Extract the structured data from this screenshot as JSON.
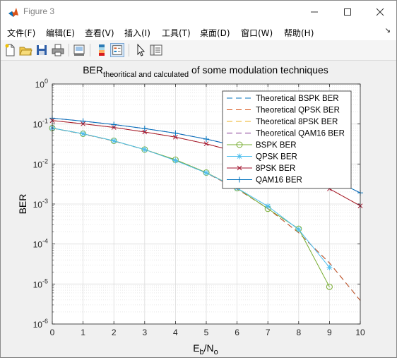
{
  "window": {
    "title": "Figure 3"
  },
  "menu": [
    "文件(F)",
    "编辑(E)",
    "查看(V)",
    "插入(I)",
    "工具(T)",
    "桌面(D)",
    "窗口(W)",
    "帮助(H)"
  ],
  "menu_overflow": "↘",
  "toolbar": [
    "new-figure",
    "open-file",
    "save",
    "print",
    "link-plot",
    "insert-colorbar",
    "insert-legend",
    "edit-plot",
    "property-inspector"
  ],
  "chart_data": {
    "type": "line",
    "title_main": "BER",
    "title_sub": "theoritical and calculated",
    "title_rest": " of some modulation techniques",
    "ylabel": "BER",
    "xlabel_main": "E",
    "xlabel_sub1": "b",
    "xlabel_mid": "/N",
    "xlabel_sub2": "o",
    "xlim": [
      0,
      10
    ],
    "ylim_log10": [
      -6,
      0
    ],
    "yscale": "log",
    "grid": true,
    "minor_grid": true,
    "legend_position": "top-right",
    "x_ticks": [
      "0",
      "1",
      "2",
      "3",
      "4",
      "5",
      "6",
      "7",
      "8",
      "9",
      "10"
    ],
    "y_ticks": [
      {
        "exp": -6,
        "label": "10",
        "sup": "-6"
      },
      {
        "exp": -5,
        "label": "10",
        "sup": "-5"
      },
      {
        "exp": -4,
        "label": "10",
        "sup": "-4"
      },
      {
        "exp": -3,
        "label": "10",
        "sup": "-3"
      },
      {
        "exp": -2,
        "label": "10",
        "sup": "-2"
      },
      {
        "exp": -1,
        "label": "10",
        "sup": "-1"
      },
      {
        "exp": 0,
        "label": "10",
        "sup": "0"
      }
    ],
    "series": [
      {
        "name": "Theoretical BSPK BER",
        "color": "#0072bd",
        "dash": "dashed",
        "marker": "none",
        "x": [
          0,
          1,
          2,
          3,
          4,
          5,
          6,
          7,
          8,
          9,
          10
        ],
        "y": [
          0.0786,
          0.0563,
          0.0375,
          0.0229,
          0.0125,
          0.00595,
          0.00239,
          0.000773,
          0.000191,
          3.36e-05,
          3.87e-06
        ]
      },
      {
        "name": "Theoretical QPSK BER",
        "color": "#d95319",
        "dash": "dashed",
        "marker": "none",
        "x": [
          0,
          1,
          2,
          3,
          4,
          5,
          6,
          7,
          8,
          9,
          10
        ],
        "y": [
          0.0786,
          0.0563,
          0.0375,
          0.0229,
          0.0125,
          0.00595,
          0.00239,
          0.000773,
          0.000191,
          3.36e-05,
          3.87e-06
        ]
      },
      {
        "name": "Theoretical 8PSK BER",
        "color": "#edb120",
        "dash": "dashed",
        "marker": "none",
        "x": [
          0,
          1,
          2,
          3,
          4,
          5,
          6,
          7,
          8,
          9,
          10
        ],
        "y": [
          0.122,
          0.101,
          0.082,
          0.063,
          0.047,
          0.032,
          0.02,
          0.0115,
          0.0057,
          0.0024,
          0.0009
        ]
      },
      {
        "name": "Theoretical QAM16 BER",
        "color": "#7e2f8e",
        "dash": "dashed",
        "marker": "none",
        "x": [
          0,
          1,
          2,
          3,
          4,
          5,
          6,
          7,
          8,
          9,
          10
        ],
        "y": [
          0.14,
          0.118,
          0.097,
          0.077,
          0.059,
          0.042,
          0.028,
          0.017,
          0.0095,
          0.0045,
          0.0019
        ]
      },
      {
        "name": "BSPK BER",
        "color": "#77ac30",
        "dash": "solid",
        "marker": "circle",
        "x": [
          0,
          1,
          2,
          3,
          4,
          5,
          6,
          7,
          8,
          9
        ],
        "y": [
          0.079,
          0.057,
          0.038,
          0.023,
          0.0128,
          0.0061,
          0.0025,
          0.00076,
          0.00024,
          8.5e-06
        ]
      },
      {
        "name": "QPSK BER",
        "color": "#4dbeee",
        "dash": "solid",
        "marker": "star",
        "x": [
          0,
          1,
          2,
          3,
          4,
          5,
          6,
          7,
          8,
          9
        ],
        "y": [
          0.079,
          0.057,
          0.038,
          0.023,
          0.0122,
          0.006,
          0.0025,
          0.00088,
          0.00023,
          2.6e-05
        ]
      },
      {
        "name": "8PSK BER",
        "color": "#a2142f",
        "dash": "solid",
        "marker": "x",
        "x": [
          0,
          1,
          2,
          3,
          4,
          5,
          6,
          7,
          8,
          9,
          10
        ],
        "y": [
          0.122,
          0.101,
          0.082,
          0.063,
          0.047,
          0.032,
          0.02,
          0.0115,
          0.0057,
          0.0024,
          0.0009
        ]
      },
      {
        "name": "QAM16 BER",
        "color": "#0072bd",
        "dash": "solid",
        "marker": "plus",
        "x": [
          0,
          1,
          2,
          3,
          4,
          5,
          6,
          7,
          8,
          9,
          10
        ],
        "y": [
          0.14,
          0.118,
          0.097,
          0.077,
          0.059,
          0.042,
          0.028,
          0.017,
          0.0095,
          0.0045,
          0.0019
        ]
      }
    ]
  }
}
